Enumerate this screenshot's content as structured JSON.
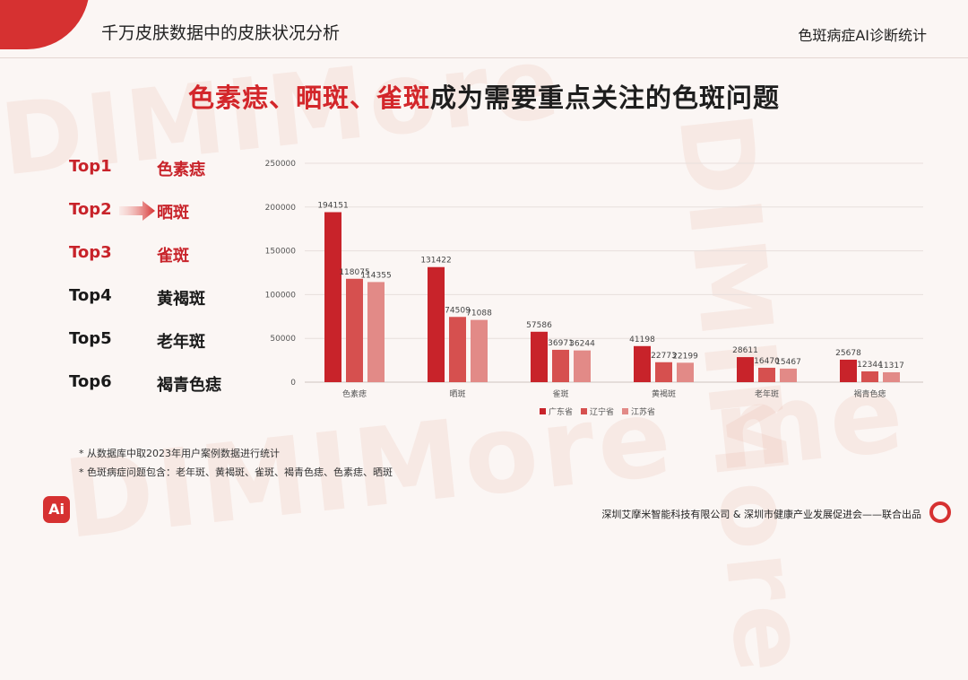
{
  "header": {
    "title": "千万皮肤数据中的皮肤状况分析",
    "right_label": "色斑病症AI诊断统计"
  },
  "watermark": {
    "line1": "DIMIMore",
    "line2": "DIMIMore me",
    "line3": "DIMIMore"
  },
  "headline": {
    "highlight": "色素痣、晒斑、雀斑",
    "rest": "成为需要重点关注的色斑问题"
  },
  "ranking": [
    {
      "rank": "Top1",
      "name": "色素痣",
      "highlight": true
    },
    {
      "rank": "Top2",
      "name": "晒斑",
      "highlight": true
    },
    {
      "rank": "Top3",
      "name": "雀斑",
      "highlight": true
    },
    {
      "rank": "Top4",
      "name": "黄褐斑",
      "highlight": false
    },
    {
      "rank": "Top5",
      "name": "老年斑",
      "highlight": false
    },
    {
      "rank": "Top6",
      "name": "褐青色痣",
      "highlight": false
    }
  ],
  "chart_data": {
    "type": "bar",
    "categories": [
      "色素痣",
      "晒斑",
      "雀斑",
      "黄褐斑",
      "老年斑",
      "褐青色痣"
    ],
    "series": [
      {
        "name": "广东省",
        "color": "#c8232a",
        "values": [
          194151,
          131422,
          57586,
          41198,
          28611,
          25678
        ]
      },
      {
        "name": "辽宁省",
        "color": "#d6504f",
        "values": [
          118075,
          74509,
          36971,
          22773,
          16470,
          12344
        ]
      },
      {
        "name": "江苏省",
        "color": "#e28a87",
        "values": [
          114355,
          71088,
          36244,
          22199,
          15467,
          11317
        ]
      }
    ],
    "ylim": [
      0,
      250000
    ],
    "yticks": [
      0,
      50000,
      100000,
      150000,
      200000,
      250000
    ],
    "grid": true,
    "legend_position": "bottom-center"
  },
  "notes": [
    "* 从数据库中取2023年用户案例数据进行统计",
    "* 色斑病症问题包含：老年斑、黄褐斑、雀斑、褐青色痣、色素痣、晒斑"
  ],
  "footer": {
    "text": "深圳艾摩米智能科技有限公司 & 深圳市健康产业发展促进会——联合出品",
    "logo_text": "Ai"
  },
  "colors": {
    "accent": "#d63131"
  }
}
